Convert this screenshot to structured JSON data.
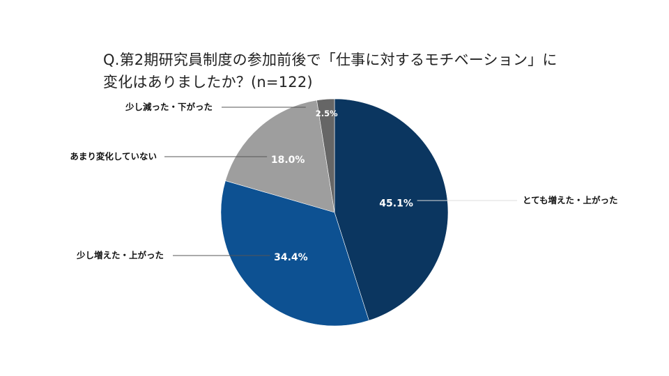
{
  "chart_data": {
    "type": "pie",
    "title_lines": [
      "Q.第2期研究員制度の参加前後で「仕事に対するモチベーション」に",
      "変化はありましたか？(n=122)"
    ],
    "slices": [
      {
        "label": "とても増えた・上がった",
        "value": 45.1,
        "display": "45.1%",
        "color": "#0b3660"
      },
      {
        "label": "少し増えた・上がった",
        "value": 34.4,
        "display": "34.4%",
        "color": "#0d5192"
      },
      {
        "label": "あまり変化していない",
        "value": 18.0,
        "display": "18.0%",
        "color": "#9e9e9e"
      },
      {
        "label": "少し減った・下がった",
        "value": 2.5,
        "display": "2.5%",
        "color": "#666666"
      }
    ]
  }
}
